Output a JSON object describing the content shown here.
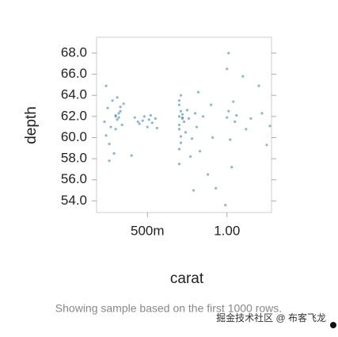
{
  "chart_data": {
    "type": "scatter",
    "x_label": "carat",
    "y_label": "depth",
    "footer": "Showing sample based on the first 1000 rows.",
    "watermark": "掘金技术社区 @ 布客飞龙",
    "color": "#4682b4",
    "xlim": [
      0.18,
      1.28
    ],
    "ylim": [
      52.9,
      69.5
    ],
    "xticks": [
      {
        "value": 0.5,
        "label": "500m"
      },
      {
        "value": 1,
        "label": "1.00"
      }
    ],
    "yticks": [
      {
        "value": 54,
        "label": "54.0"
      },
      {
        "value": 56,
        "label": "56.0"
      },
      {
        "value": 58,
        "label": "58.0"
      },
      {
        "value": 60,
        "label": "60.0"
      },
      {
        "value": 62,
        "label": "62.0"
      },
      {
        "value": 64,
        "label": "64.0"
      },
      {
        "value": 66,
        "label": "66.0"
      },
      {
        "value": 68,
        "label": "68.0"
      }
    ],
    "x": [
      0.23,
      0.24,
      0.25,
      0.26,
      0.27,
      0.28,
      0.3,
      0.31,
      0.32,
      0.31,
      0.33,
      0.34,
      0.3,
      0.29,
      0.26,
      0.24,
      0.35,
      0.32,
      0.33,
      0.3,
      0.4,
      0.42,
      0.45,
      0.47,
      0.5,
      0.52,
      0.53,
      0.55,
      0.56,
      0.48,
      0.51,
      0.44,
      0.7,
      0.7,
      0.71,
      0.7,
      0.71,
      0.7,
      0.72,
      0.7,
      0.71,
      0.7,
      0.72,
      0.73,
      0.71,
      0.7,
      0.72,
      0.74,
      0.75,
      0.76,
      0.78,
      0.8,
      0.81,
      0.83,
      0.85,
      0.88,
      0.9,
      0.91,
      0.77,
      0.79,
      0.82,
      1.0,
      1.01,
      1.02,
      1.0,
      1.01,
      1.03,
      0.99,
      1.04,
      1.05,
      1.1,
      1.12,
      1.2,
      1.22,
      1.25,
      1.27,
      1.15,
      0.93,
      1.06
    ],
    "y": [
      61.5,
      60.2,
      62.8,
      59.4,
      61.0,
      63.5,
      62.0,
      61.7,
      62.3,
      63.8,
      62.5,
      61.2,
      60.8,
      58.5,
      57.8,
      64.9,
      63.2,
      61.9,
      62.9,
      62.1,
      58.3,
      61.9,
      61.3,
      61.6,
      61.0,
      62.1,
      61.4,
      61.8,
      60.9,
      62.0,
      61.7,
      61.5,
      61.2,
      62.0,
      62.5,
      60.8,
      59.5,
      63.1,
      61.8,
      58.9,
      64.0,
      57.5,
      62.2,
      61.5,
      60.1,
      63.5,
      61.9,
      60.5,
      62.6,
      61.8,
      59.9,
      62.3,
      61.0,
      58.7,
      62.0,
      56.5,
      63.1,
      60.0,
      58.2,
      55.0,
      64.3,
      61.9,
      62.5,
      59.8,
      66.5,
      68.0,
      57.2,
      53.6,
      63.4,
      61.5,
      65.8,
      60.8,
      64.9,
      62.3,
      59.3,
      61.1,
      61.8,
      55.2,
      62.1
    ]
  }
}
